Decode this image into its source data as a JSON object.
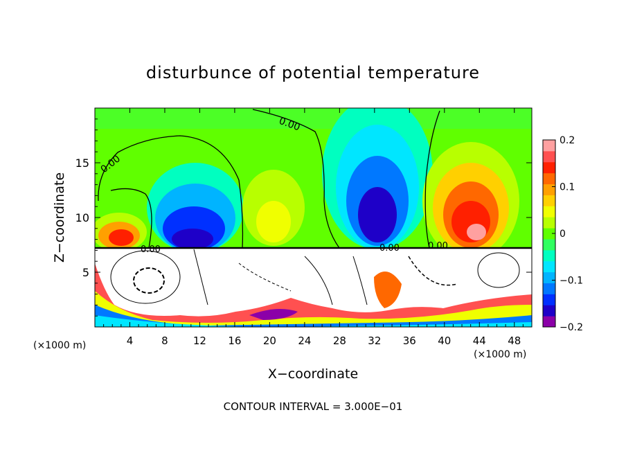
{
  "chart_data": {
    "type": "heatmap",
    "title": "disturbunce of potential temperature",
    "xlabel": "X−coordinate",
    "ylabel": "Z−coordinate",
    "x_unit_left": "(×1000 m)",
    "x_unit_right": "(×1000 m)",
    "xlim": [
      0,
      50
    ],
    "ylim": [
      0,
      20
    ],
    "x_ticks": [
      4,
      8,
      12,
      16,
      20,
      24,
      28,
      32,
      36,
      40,
      44,
      48
    ],
    "x_tick_labels": [
      "4",
      "8",
      "12",
      "16",
      "20",
      "24",
      "28",
      "32",
      "36",
      "40",
      "44",
      "48"
    ],
    "y_ticks": [
      5,
      10,
      15
    ],
    "y_tick_labels": [
      "5",
      "10",
      "15"
    ],
    "colorbar": {
      "min": -0.2,
      "max": 0.2,
      "ticks": [
        0.2,
        0.1,
        0,
        -0.1,
        -0.2
      ],
      "tick_labels": [
        "0.2",
        "0.1",
        "0",
        "−0.1",
        "−0.2"
      ],
      "colors": [
        "#8b00a8",
        "#1e00c8",
        "#0030ff",
        "#0078ff",
        "#00b4ff",
        "#00e6ff",
        "#00ffc0",
        "#30ff60",
        "#60ff00",
        "#b8ff00",
        "#f0ff00",
        "#ffd000",
        "#ffa000",
        "#ff6800",
        "#ff2000",
        "#ff5050",
        "#ffa0a0"
      ]
    },
    "contour_labels": [
      "0.00",
      "0.00",
      "0.00",
      "0.00",
      "0.00"
    ],
    "contour_interval_text": "CONTOUR INTERVAL = 3.000E−01"
  }
}
